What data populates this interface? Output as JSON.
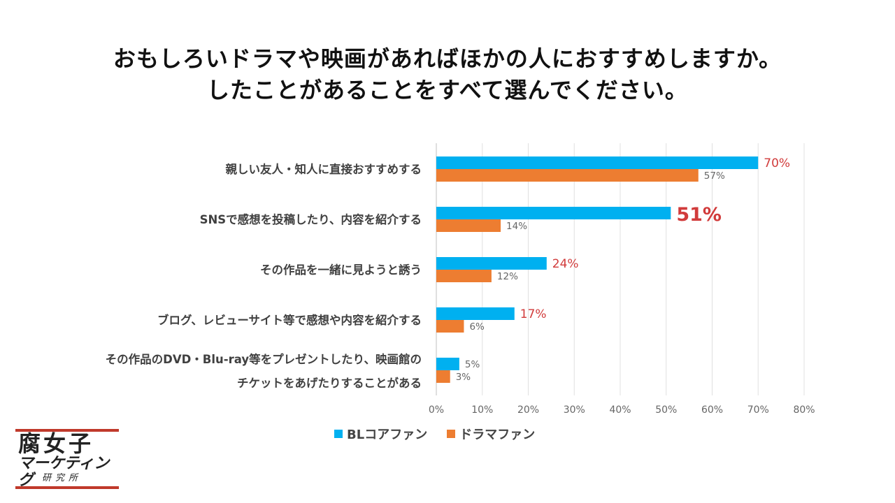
{
  "chart_data": {
    "type": "bar",
    "orientation": "horizontal",
    "title_lines": [
      "おもしろいドラマや映画があればほかの人におすすめしますか。",
      "したことがあることをすべて選んでください。"
    ],
    "categories": [
      [
        "親しい友人・知人に直接おすすめする"
      ],
      [
        "SNSで感想を投稿したり、内容を紹介する"
      ],
      [
        "その作品を一緒に見ようと誘う"
      ],
      [
        "ブログ、レビューサイト等で感想や内容を紹介する"
      ],
      [
        "その作品のDVD・Blu-ray等をプレゼントしたり、映画館の",
        "チケットをあげたりすることがある"
      ]
    ],
    "series": [
      {
        "name": "BLコアファン",
        "color": "#00b0f0",
        "values": [
          70,
          51,
          24,
          17,
          5
        ],
        "labels": [
          "70%",
          "51%",
          "24%",
          "17%",
          "5%"
        ]
      },
      {
        "name": "ドラマファン",
        "color": "#ed7d31",
        "values": [
          57,
          14,
          12,
          6,
          3
        ],
        "labels": [
          "57%",
          "14%",
          "12%",
          "6%",
          "3%"
        ]
      }
    ],
    "xlim": [
      0,
      80
    ],
    "xticks": [
      "0%",
      "10%",
      "20%",
      "30%",
      "40%",
      "50%",
      "60%",
      "70%",
      "80%"
    ],
    "grid": true,
    "legend_position": "bottom",
    "highlight_color": "#d13b3b"
  },
  "logo": {
    "line1": "腐女子",
    "line2": "マーケティング",
    "line3": "研究所",
    "accent_color": "#c0392b"
  }
}
